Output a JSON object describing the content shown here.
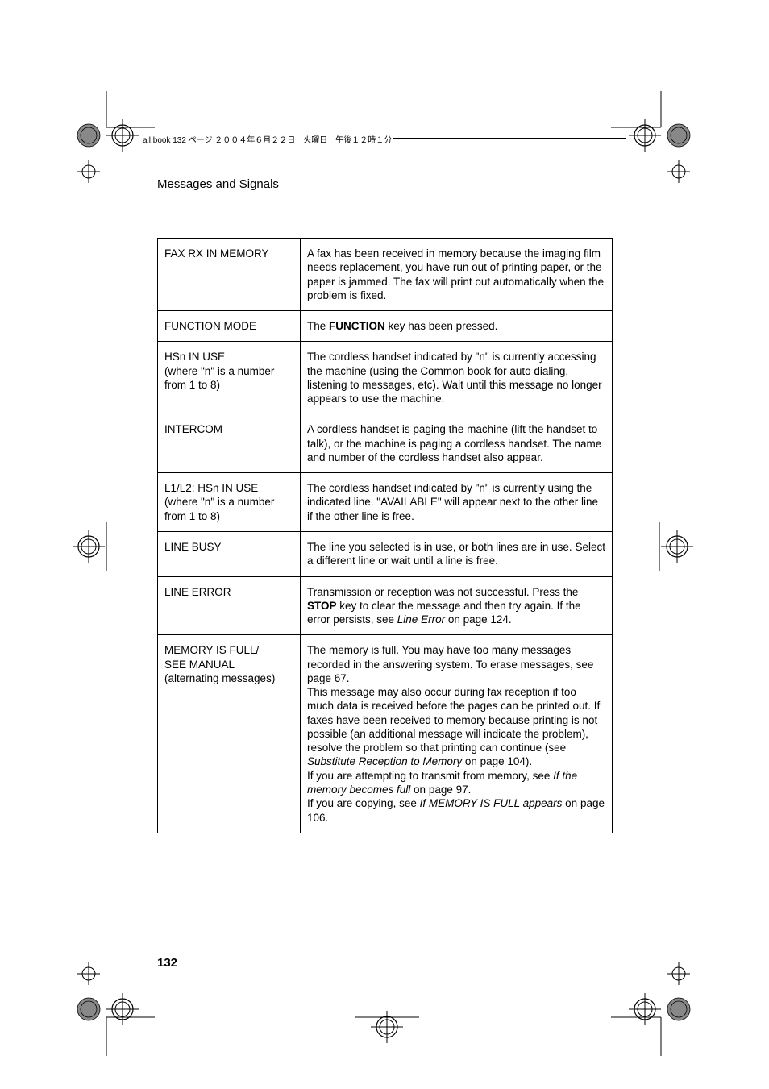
{
  "print_header": {
    "text": "all.book  132 ページ  ２００４年６月２２日　火曜日　午後１２時１分"
  },
  "section_title": "Messages and Signals",
  "page_number": "132",
  "table": {
    "rows": [
      {
        "left": "FAX RX IN MEMORY",
        "right_segments": [
          {
            "t": "A fax has been received in memory because the imaging film needs replacement, you have run out of printing paper, or the paper is jammed. The fax will print out automatically when the problem is fixed."
          }
        ]
      },
      {
        "left": "FUNCTION MODE",
        "right_segments": [
          {
            "t": "The "
          },
          {
            "t": "FUNCTION",
            "b": true
          },
          {
            "t": " key has been pressed."
          }
        ]
      },
      {
        "left_segments": [
          {
            "t": "HSn IN USE"
          },
          {
            "br": true
          },
          {
            "t": "(where \"n\" is a number from 1 to 8)"
          }
        ],
        "right_segments": [
          {
            "t": "The cordless handset indicated by \"n\" is currently accessing the machine (using the Common book for auto dialing, listening to messages, etc). Wait until this message no longer appears to use the machine."
          }
        ]
      },
      {
        "left": "INTERCOM",
        "right_segments": [
          {
            "t": "A cordless handset is paging the machine (lift the handset to talk), or the machine is paging a cordless handset. The name and number of the cordless handset also appear."
          }
        ]
      },
      {
        "left_segments": [
          {
            "t": "L1/L2: HSn IN USE"
          },
          {
            "br": true
          },
          {
            "t": "(where \"n\" is a number from 1 to 8)"
          }
        ],
        "right_segments": [
          {
            "t": "The cordless handset indicated by \"n\" is currently using the indicated line. \"AVAILABLE\" will appear next to the other line if the other line is free."
          }
        ]
      },
      {
        "left": "LINE BUSY",
        "right_segments": [
          {
            "t": "The line you selected is in use, or both lines are in use. Select a different line or wait until a line is free."
          }
        ]
      },
      {
        "left": "LINE ERROR",
        "right_segments": [
          {
            "t": "Transmission or reception was not successful. Press the "
          },
          {
            "t": "STOP",
            "b": true
          },
          {
            "t": " key to clear the message and then try again. If the error persists, see "
          },
          {
            "t": "Line Error",
            "i": true
          },
          {
            "t": " on page 124."
          }
        ]
      },
      {
        "left_segments": [
          {
            "t": "MEMORY IS FULL/"
          },
          {
            "br": true
          },
          {
            "t": "SEE MANUAL"
          },
          {
            "br": true
          },
          {
            "t": "(alternating messages)"
          }
        ],
        "right_segments": [
          {
            "t": "The memory is full. You may have too many messages recorded in the answering system. To erase messages, see page 67."
          },
          {
            "br": true
          },
          {
            "t": "This message may also occur during fax reception if too much data is received before the pages can be printed out. If faxes have been received to memory because printing is not possible (an additional message will indicate the problem), resolve the problem so that printing can continue (see "
          },
          {
            "t": "Substitute Reception to Memory",
            "i": true
          },
          {
            "t": " on page 104)."
          },
          {
            "br": true
          },
          {
            "t": "If you are attempting to transmit from memory, see "
          },
          {
            "t": "If the memory becomes full",
            "i": true
          },
          {
            "t": " on page 97."
          },
          {
            "br": true
          },
          {
            "t": "If you are copying, see "
          },
          {
            "t": "If MEMORY IS FULL appears",
            "i": true
          },
          {
            "t": " on page 106."
          }
        ]
      }
    ]
  },
  "marks": {
    "stroke": "#000000",
    "fill_dark": "#555555"
  }
}
